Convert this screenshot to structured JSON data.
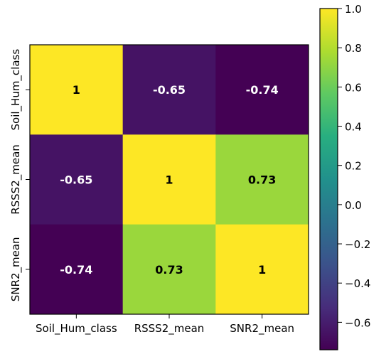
{
  "chart_data": {
    "type": "heatmap",
    "x_categories": [
      "Soil_Hum_class",
      "RSSS2_mean",
      "SNR2_mean"
    ],
    "y_categories": [
      "Soil_Hum_class",
      "RSSS2_mean",
      "SNR2_mean"
    ],
    "values": [
      [
        1,
        -0.65,
        -0.74
      ],
      [
        -0.65,
        1,
        0.73
      ],
      [
        -0.74,
        0.73,
        1
      ]
    ],
    "cell_labels": [
      [
        "1",
        "-0.65",
        "-0.74"
      ],
      [
        "-0.65",
        "1",
        "0.73"
      ],
      [
        "-0.74",
        "0.73",
        "1"
      ]
    ],
    "colormap": "viridis",
    "value_range": [
      -0.74,
      1.0
    ],
    "colorbar_ticks": [
      1.0,
      0.8,
      0.6,
      0.4,
      0.2,
      0.0,
      -0.2,
      -0.4,
      -0.6
    ],
    "colorbar_tick_labels": [
      "1.0",
      "0.8",
      "0.6",
      "0.4",
      "0.2",
      "0.0",
      "−0.2",
      "−0.4",
      "−0.6"
    ],
    "legend": "colorbar right"
  }
}
